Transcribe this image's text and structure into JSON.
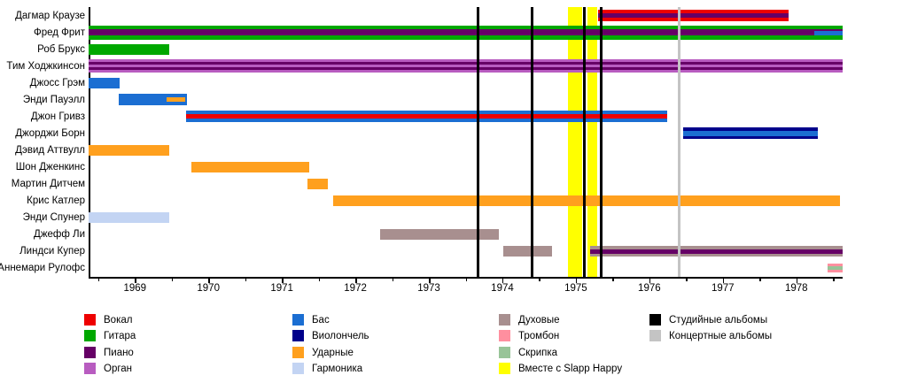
{
  "chart_data": {
    "type": "bar",
    "subtype": "membership-timeline",
    "x_range": [
      1968.37,
      1978.63
    ],
    "x_ticks": [
      1969,
      1970,
      1971,
      1972,
      1973,
      1974,
      1975,
      1976,
      1977,
      1978
    ],
    "minor_tick_step": 0.5,
    "grid": false,
    "colors": {
      "vocals": "#ee0000",
      "guitar": "#00a800",
      "piano": "#660066",
      "organ": "#b85cc0",
      "bass": "#1b6ed2",
      "cello": "#00008b",
      "drums": "#ffa01e",
      "harmonica": "#c3d4f3",
      "winds": "#a88f8f",
      "trombone": "#ff8f9f",
      "violin": "#98c498",
      "slapp": "#ffff00",
      "studio": "#000000",
      "live": "#c4c4c4"
    },
    "rows": [
      {
        "name": "Дагмар Краузе",
        "bars": [
          {
            "start": 1975.3,
            "end": 1977.89,
            "h": 13,
            "layers": [
              "vocals",
              "piano",
              "vocals"
            ]
          }
        ]
      },
      {
        "name": "Фред Фрит",
        "bars": [
          {
            "start": 1968.37,
            "end": 1978.63,
            "h": 16,
            "layers": [
              "guitar",
              "piano",
              "guitar"
            ],
            "overlays": [
              {
                "color": "bass",
                "start": 1978.24,
                "end": 1978.63,
                "top": 0.42,
                "hfrac": 0.3
              }
            ]
          }
        ]
      },
      {
        "name": "Роб Брукс",
        "bars": [
          {
            "start": 1968.37,
            "end": 1969.47,
            "h": 12,
            "layers": [
              "guitar"
            ]
          }
        ]
      },
      {
        "name": "Тим Ходжкинсон",
        "bars": [
          {
            "start": 1968.37,
            "end": 1978.63,
            "h": 15,
            "layers": [
              "organ",
              "piano",
              "organ",
              "piano",
              "organ"
            ]
          }
        ]
      },
      {
        "name": "Джосс Грэм",
        "bars": [
          {
            "start": 1968.37,
            "end": 1968.79,
            "h": 12,
            "layers": [
              "bass"
            ]
          }
        ]
      },
      {
        "name": "Энди Пауэлл",
        "bars": [
          {
            "start": 1968.78,
            "end": 1969.71,
            "h": 13,
            "layers": [
              "bass"
            ],
            "overlays": [
              {
                "color": "drums",
                "start": 1969.43,
                "end": 1969.68,
                "top": 0.3,
                "hfrac": 0.4
              }
            ]
          }
        ]
      },
      {
        "name": "Джон Гривз",
        "bars": [
          {
            "start": 1969.7,
            "end": 1976.24,
            "h": 13,
            "layers": [
              "bass",
              "vocals",
              "bass"
            ]
          }
        ]
      },
      {
        "name": "Джорджи Борн",
        "bars": [
          {
            "start": 1976.46,
            "end": 1978.29,
            "h": 13,
            "layers": [
              "cello",
              "bass",
              "cello"
            ]
          }
        ]
      },
      {
        "name": "Дэвид Аттвулл",
        "bars": [
          {
            "start": 1968.37,
            "end": 1969.47,
            "h": 12,
            "layers": [
              "drums"
            ]
          }
        ]
      },
      {
        "name": "Шон Дженкинс",
        "bars": [
          {
            "start": 1969.77,
            "end": 1971.37,
            "h": 12,
            "layers": [
              "drums"
            ]
          }
        ]
      },
      {
        "name": "Мартин Дитчем",
        "bars": [
          {
            "start": 1971.35,
            "end": 1971.62,
            "h": 12,
            "layers": [
              "drums"
            ]
          }
        ]
      },
      {
        "name": "Крис Катлер",
        "bars": [
          {
            "start": 1971.7,
            "end": 1978.6,
            "h": 12,
            "layers": [
              "drums"
            ]
          }
        ]
      },
      {
        "name": "Энди Спунер",
        "bars": [
          {
            "start": 1968.37,
            "end": 1969.47,
            "h": 12,
            "layers": [
              "harmonica"
            ]
          }
        ]
      },
      {
        "name": "Джефф Ли",
        "bars": [
          {
            "start": 1972.34,
            "end": 1973.95,
            "h": 12,
            "layers": [
              "winds"
            ]
          }
        ]
      },
      {
        "name": "Линдси Купер",
        "bars": [
          {
            "start": 1974.01,
            "end": 1974.68,
            "h": 12,
            "layers": [
              "winds"
            ]
          },
          {
            "start": 1975.19,
            "end": 1978.63,
            "h": 12,
            "layers": [
              "winds",
              "piano",
              "winds"
            ]
          }
        ]
      },
      {
        "name": "Аннемари Рулофс",
        "bars": [
          {
            "start": 1978.42,
            "end": 1978.63,
            "h": 10,
            "layers": [
              "trombone",
              "violin",
              "trombone"
            ]
          }
        ]
      }
    ],
    "markers": {
      "studio_albums": [
        1973.67,
        1974.4,
        1975.12,
        1975.34
      ],
      "live_albums": [
        1976.41
      ],
      "slapp_happy_periods": [
        [
          1974.89,
          1975.09
        ],
        [
          1975.16,
          1975.29
        ]
      ]
    }
  },
  "legend": {
    "columns": [
      {
        "items": [
          {
            "key": "vocals",
            "label": "Вокал"
          },
          {
            "key": "guitar",
            "label": "Гитара"
          },
          {
            "key": "piano",
            "label": "Пиано"
          },
          {
            "key": "organ",
            "label": "Орган"
          }
        ]
      },
      {
        "items": [
          {
            "key": "bass",
            "label": "Бас"
          },
          {
            "key": "cello",
            "label": "Виолончель"
          },
          {
            "key": "drums",
            "label": "Ударные"
          },
          {
            "key": "harmonica",
            "label": "Гармоника"
          }
        ]
      },
      {
        "items": [
          {
            "key": "winds",
            "label": "Духовые"
          },
          {
            "key": "trombone",
            "label": "Тромбон"
          },
          {
            "key": "violin",
            "label": "Скрипка"
          },
          {
            "key": "slapp",
            "label": "Вместе с Slapp Happy"
          }
        ]
      },
      {
        "items": [
          {
            "key": "studio",
            "label": "Студийные альбомы"
          },
          {
            "key": "live",
            "label": "Концертные альбомы"
          }
        ]
      }
    ]
  }
}
